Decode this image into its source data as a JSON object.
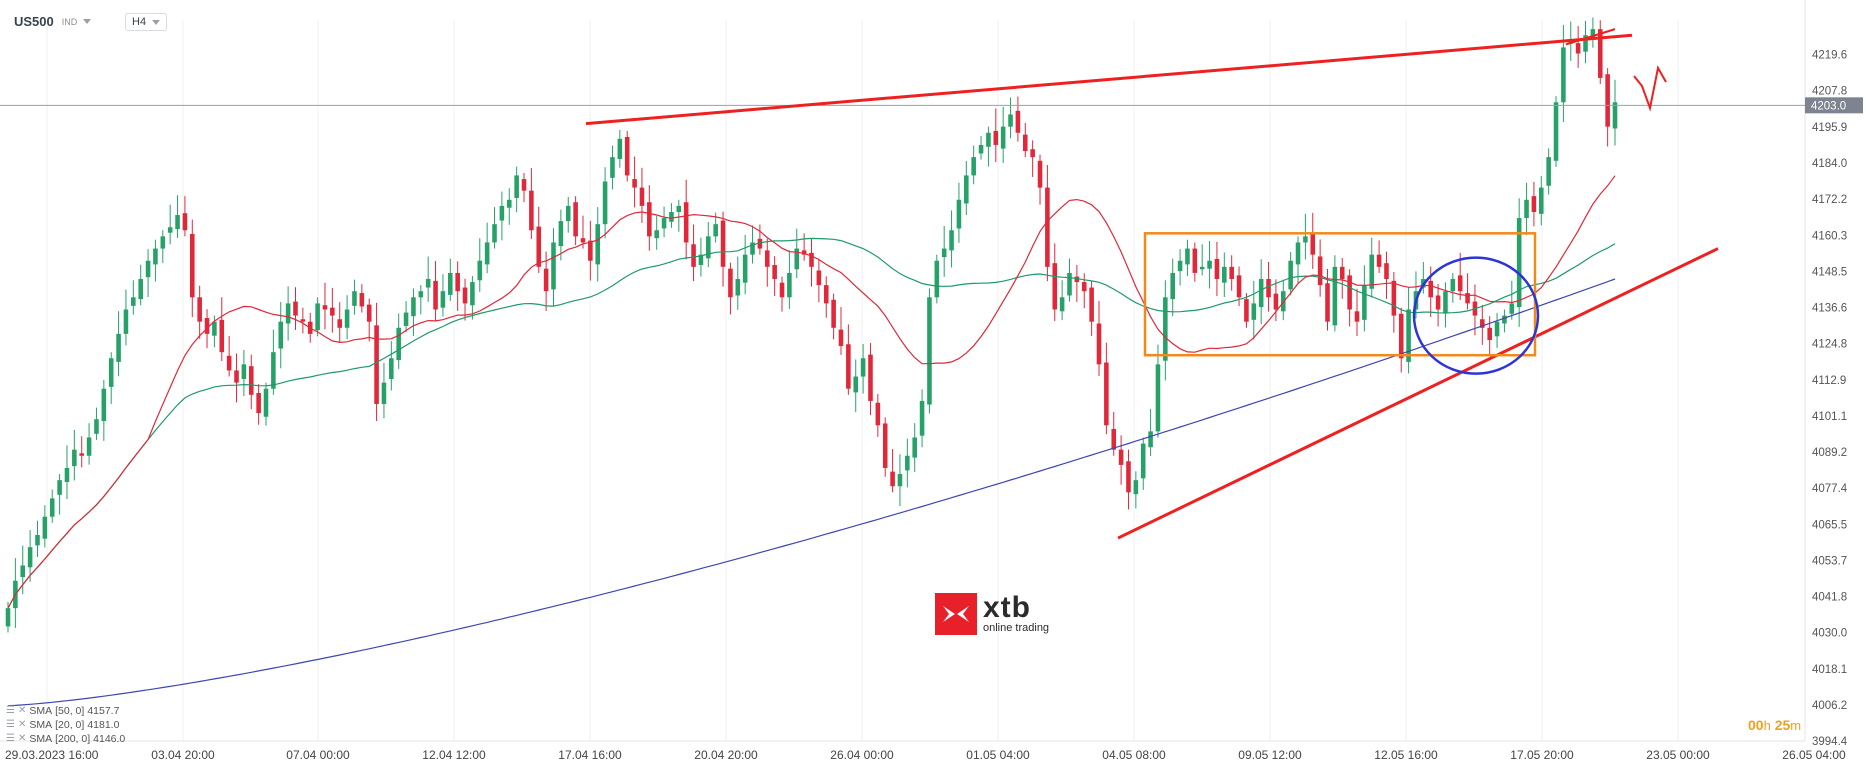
{
  "header": {
    "symbol": "US500",
    "badge": "IND",
    "timeframe": "H4"
  },
  "colors": {
    "up": "#26a269",
    "down": "#e0283a",
    "sma20": "#e0283a",
    "sma50": "#1f9a6a",
    "sma200": "#3c48b0",
    "annotation_red": "#ee2020",
    "box_orange": "#f28a1a",
    "circle_blue": "#2b35d8",
    "price_line": "#9aa0a8"
  },
  "chart_data": {
    "type": "candlestick",
    "symbol": "US500",
    "timeframe": "H4",
    "ylim": [
      3994.4,
      4231.0
    ],
    "y_ticks": [
      "4219.6",
      "4207.8",
      "4195.9",
      "4184.0",
      "4172.2",
      "4160.3",
      "4148.5",
      "4136.6",
      "4124.8",
      "4112.9",
      "4101.1",
      "4089.2",
      "4077.4",
      "4065.5",
      "4053.7",
      "4041.8",
      "4030.0",
      "4018.1",
      "4006.2",
      "3994.4"
    ],
    "current_price": "4203.0",
    "x_ticks": [
      "29.03.2023 16:00",
      "03.04 20:00",
      "07.04 00:00",
      "12.04 12:00",
      "17.04 16:00",
      "20.04 20:00",
      "26.04 00:00",
      "01.05 04:00",
      "04.05 08:00",
      "09.05 12:00",
      "12.05 16:00",
      "17.05 20:00",
      "23.05 00:00",
      "26.05 04:00"
    ],
    "indicators": [
      {
        "name": "SMA",
        "params": "[50, 0]",
        "value": "4157.7",
        "color": "#1f9a6a"
      },
      {
        "name": "SMA",
        "params": "[20, 0]",
        "value": "4181.0",
        "color": "#e0283a"
      },
      {
        "name": "SMA",
        "params": "[200, 0]",
        "value": "4146.0",
        "color": "#3c48b0"
      }
    ],
    "closes": [
      4038,
      4047,
      4052,
      4058,
      4062,
      4068,
      4074,
      4080,
      4084,
      4090,
      4088,
      4094,
      4100,
      4110,
      4120,
      4128,
      4136,
      4140,
      4146,
      4152,
      4156,
      4160,
      4163,
      4167,
      4162,
      4140,
      4132,
      4128,
      4132,
      4122,
      4116,
      4112,
      4118,
      4108,
      4102,
      4110,
      4122,
      4132,
      4138,
      4134,
      4132,
      4128,
      4138,
      4136,
      4134,
      4130,
      4136,
      4142,
      4137,
      4132,
      4105,
      4112,
      4120,
      4130,
      4135,
      4140,
      4142,
      4146,
      4136,
      4142,
      4148,
      4142,
      4138,
      4145,
      4152,
      4158,
      4164,
      4170,
      4172,
      4180,
      4175,
      4162,
      4150,
      4142,
      4158,
      4165,
      4170,
      4160,
      4158,
      4152,
      4164,
      4178,
      4186,
      4192,
      4180,
      4176,
      4170,
      4160,
      4162,
      4166,
      4168,
      4170,
      4158,
      4150,
      4154,
      4160,
      4164,
      4150,
      4140,
      4146,
      4154,
      4158,
      4156,
      4150,
      4146,
      4140,
      4148,
      4156,
      4154,
      4150,
      4144,
      4138,
      4130,
      4124,
      4110,
      4114,
      4120,
      4106,
      4098,
      4084,
      4078,
      4082,
      4088,
      4094,
      4106,
      4140,
      4152,
      4156,
      4162,
      4172,
      4180,
      4186,
      4190,
      4194,
      4190,
      4196,
      4200,
      4194,
      4188,
      4186,
      4176,
      4150,
      4136,
      4140,
      4148,
      4145,
      4142,
      4132,
      4118,
      4098,
      4090,
      4085,
      4076,
      4080,
      4092,
      4096,
      4118,
      4140,
      4148,
      4152,
      4156,
      4148,
      4150,
      4152,
      4146,
      4150,
      4146,
      4140,
      4132,
      4138,
      4146,
      4140,
      4136,
      4142,
      4152,
      4158,
      4160,
      4154,
      4144,
      4132,
      4150,
      4146,
      4136,
      4132,
      4144,
      4154,
      4150,
      4146,
      4134,
      4120,
      4136,
      4142,
      4146,
      4140,
      4136,
      4142,
      4146,
      4142,
      4138,
      4134,
      4130,
      4126,
      4132,
      4134,
      4138,
      4166,
      4172,
      4168,
      4176,
      4186,
      4204,
      4222,
      4224,
      4220,
      4226,
      4228,
      4212,
      4196,
      4204
    ]
  },
  "branding": {
    "logo_text": "xtb",
    "logo_sub": "online trading"
  },
  "timer": {
    "hours": "00",
    "h_unit": "h",
    "minutes": "25",
    "m_unit": "m"
  }
}
